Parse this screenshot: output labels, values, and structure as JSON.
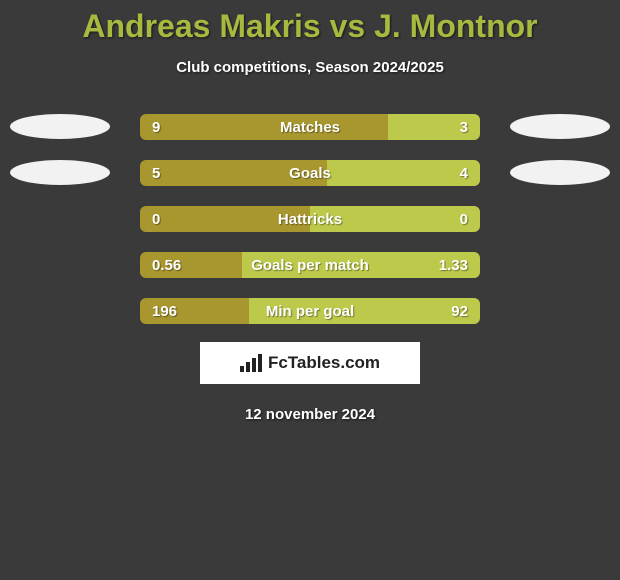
{
  "title_color": "#a9b83e",
  "title": "Andreas Makris vs J. Montnor",
  "subtitle": "Club competitions, Season 2024/2025",
  "players": {
    "left": {
      "color": "#a8972e"
    },
    "right": {
      "color": "#bcc94a"
    }
  },
  "oval_color": "#f2f2f2",
  "rows": [
    {
      "label": "Matches",
      "left_val": "9",
      "right_val": "3",
      "left_pct": 73,
      "show_ovals": true
    },
    {
      "label": "Goals",
      "left_val": "5",
      "right_val": "4",
      "left_pct": 55,
      "show_ovals": true
    },
    {
      "label": "Hattricks",
      "left_val": "0",
      "right_val": "0",
      "left_pct": 50,
      "show_ovals": false
    },
    {
      "label": "Goals per match",
      "left_val": "0.56",
      "right_val": "1.33",
      "left_pct": 30,
      "show_ovals": false
    },
    {
      "label": "Min per goal",
      "left_val": "196",
      "right_val": "92",
      "left_pct": 32,
      "show_ovals": false
    }
  ],
  "brand": "FcTables.com",
  "date": "12 november 2024",
  "bg_color": "#3a3a3a",
  "label_text_color": "#ffffff"
}
